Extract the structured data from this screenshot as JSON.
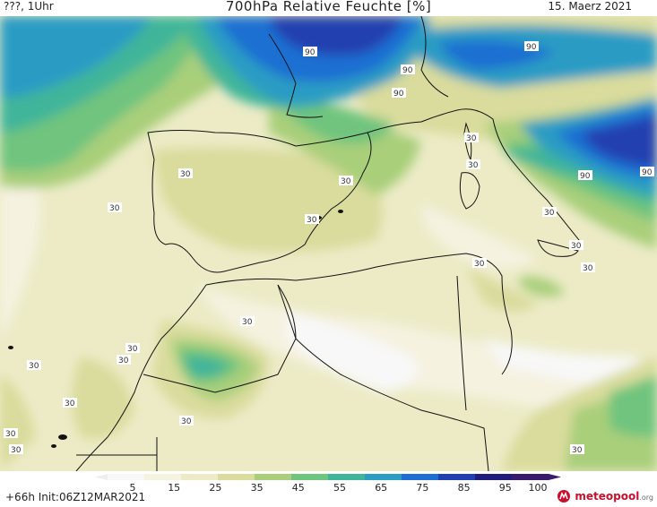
{
  "header": {
    "left": "???, 1Uhr",
    "title": "700hPa Relative Feuchte [%]",
    "right": "15. Maerz 2021"
  },
  "footer": {
    "run": "+66h Init:06Z12MAR2021",
    "logo": "meteopool",
    "logo_suffix": ".org"
  },
  "colorbar": {
    "ticks": [
      "5",
      "15",
      "25",
      "35",
      "45",
      "55",
      "65",
      "75",
      "85",
      "95",
      "100"
    ],
    "colors": [
      "#f8f8f8",
      "#f5f2e0",
      "#ecebc6",
      "#d9dc9c",
      "#a9cf7a",
      "#6fc47e",
      "#3fb59a",
      "#2b9cc4",
      "#1f6fd2",
      "#2040b0",
      "#201e7a",
      "#3a1a6a"
    ]
  },
  "contour_labels": [
    "90",
    "90",
    "90",
    "90",
    "90",
    "90",
    "30",
    "30",
    "30",
    "30",
    "30",
    "30",
    "30",
    "30",
    "30",
    "30",
    "30",
    "30",
    "30",
    "30",
    "30",
    "30",
    "30",
    "30",
    "30"
  ]
}
